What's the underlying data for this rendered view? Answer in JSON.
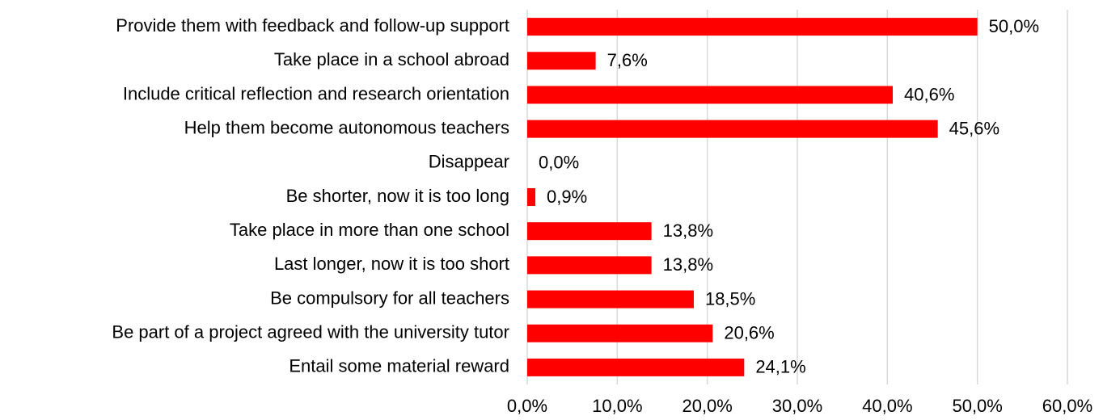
{
  "chart_data": {
    "type": "barh",
    "categories": [
      "Provide them with feedback and follow-up support",
      "Take place in a school abroad",
      "Include critical reflection and research orientation",
      "Help them become autonomous teachers",
      "Disappear",
      "Be shorter, now it is too long",
      "Take place in more than one school",
      "Last longer, now it is too short",
      "Be compulsory for all teachers",
      "Be part of a project agreed with the university tutor",
      "Entail some material reward"
    ],
    "values": [
      50.0,
      7.6,
      40.6,
      45.6,
      0.0,
      0.9,
      13.8,
      13.8,
      18.5,
      20.6,
      24.1
    ],
    "value_labels": [
      "50,0%",
      "7,6%",
      "40,6%",
      "45,6%",
      "0,0%",
      "0,9%",
      "13,8%",
      "13,8%",
      "18,5%",
      "20,6%",
      "24,1%"
    ],
    "color": "#ff0000",
    "xlim": [
      0,
      60
    ],
    "xticks": [
      {
        "value": 0,
        "label": "0,0%"
      },
      {
        "value": 10,
        "label": "10,0%"
      },
      {
        "value": 20,
        "label": "20,0%"
      },
      {
        "value": 30,
        "label": "30,0%"
      },
      {
        "value": 40,
        "label": "40,0%"
      },
      {
        "value": 50,
        "label": "50,0%"
      },
      {
        "value": 60,
        "label": "60,0%"
      }
    ],
    "grid": true
  }
}
